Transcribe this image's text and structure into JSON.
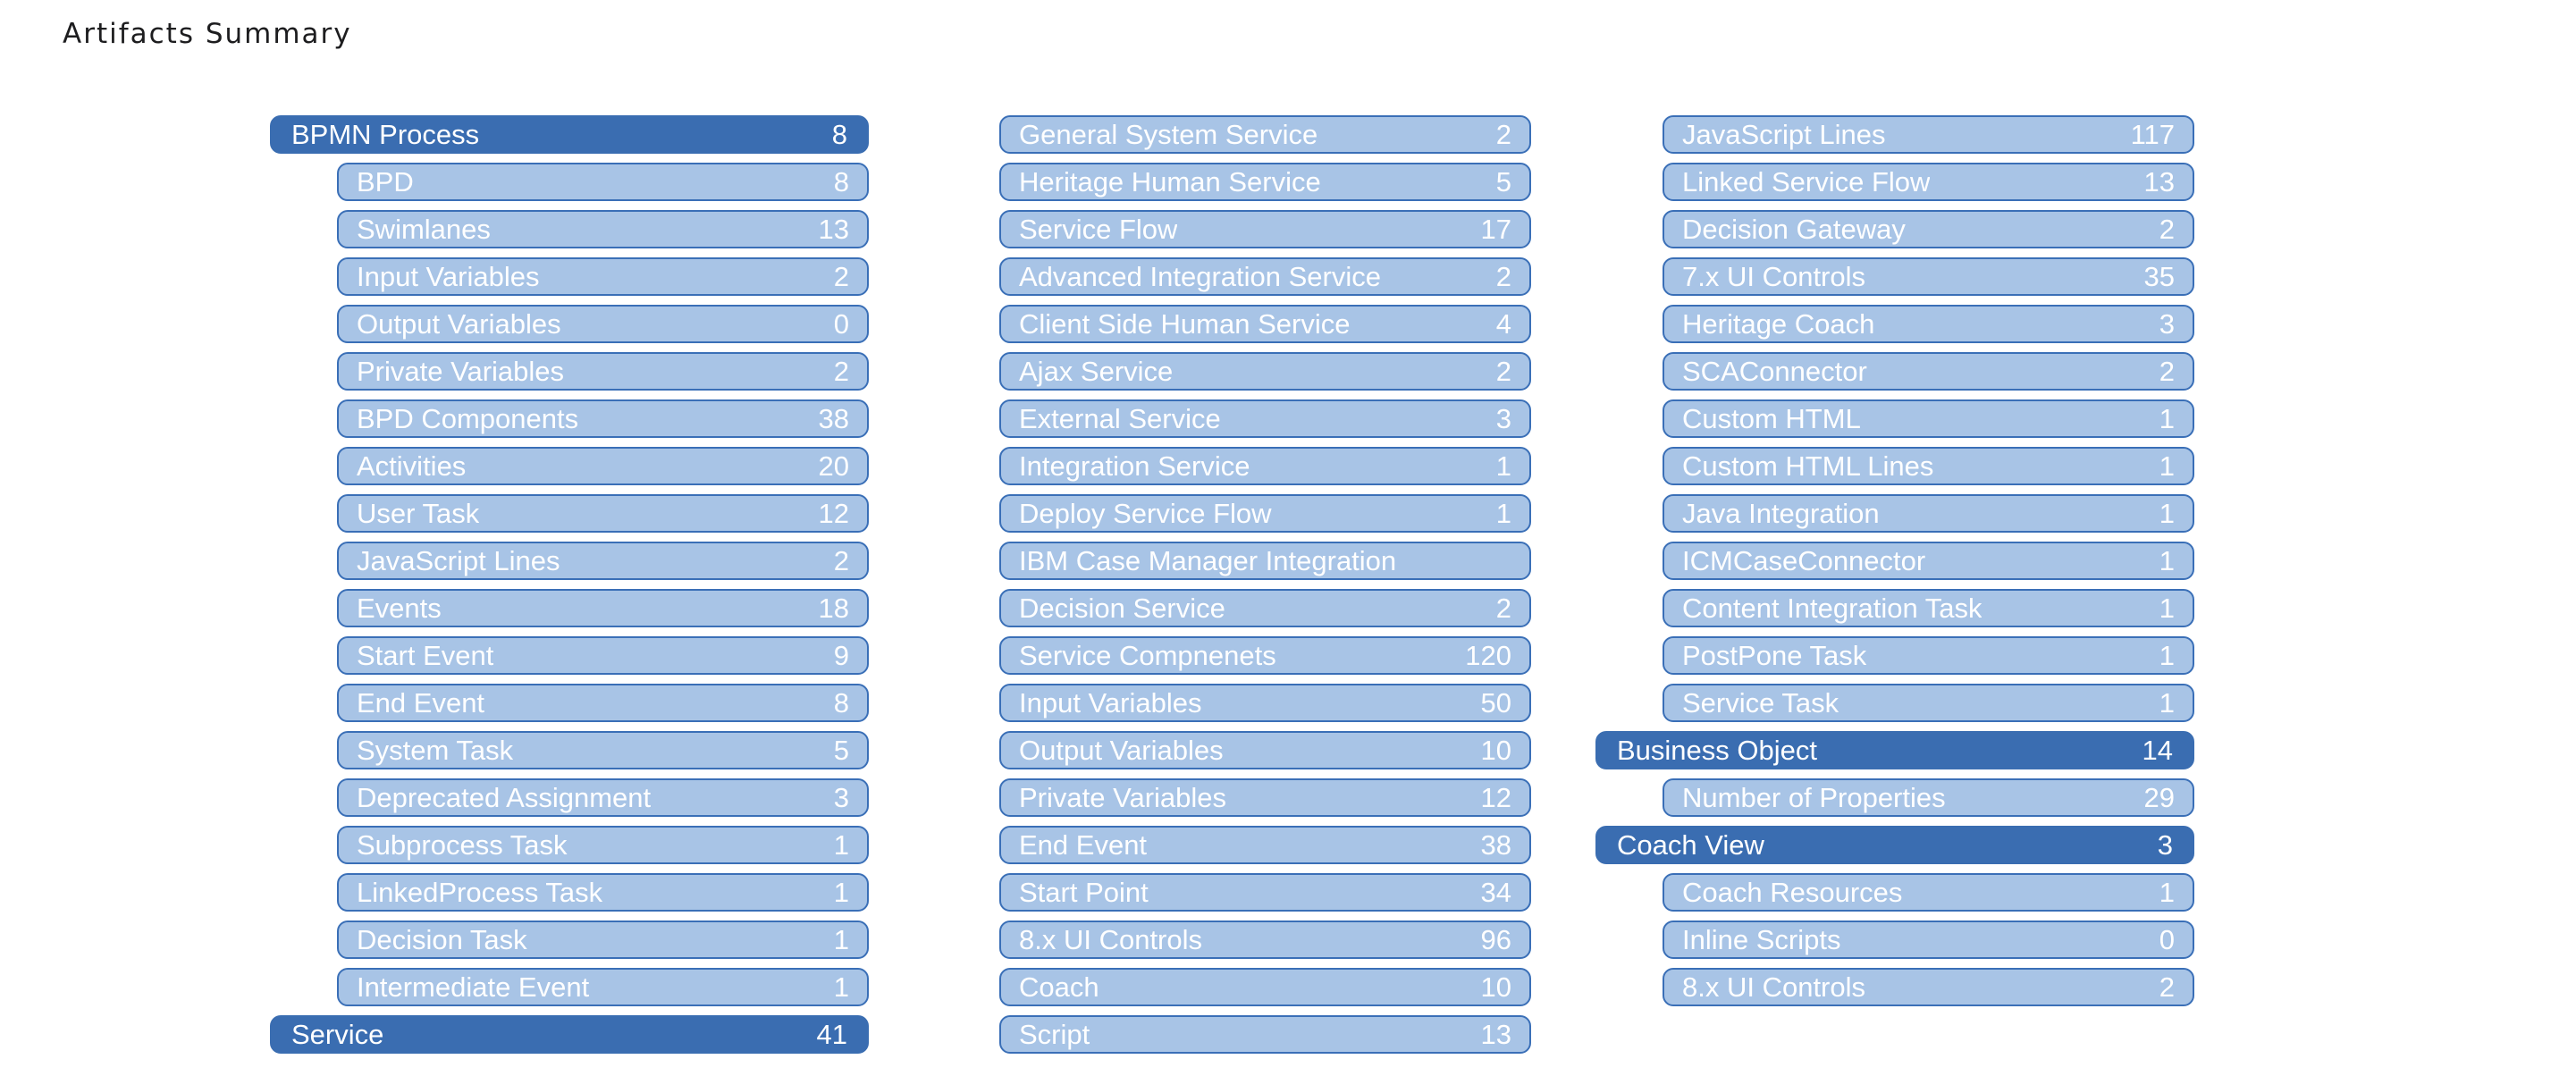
{
  "title": "Artifacts Summary",
  "columns": [
    [
      {
        "label": "BPMN Process",
        "count": "8",
        "group": true
      },
      {
        "label": "BPD",
        "count": "8"
      },
      {
        "label": "Swimlanes",
        "count": "13"
      },
      {
        "label": "Input Variables",
        "count": "2"
      },
      {
        "label": "Output Variables",
        "count": "0"
      },
      {
        "label": "Private Variables",
        "count": "2"
      },
      {
        "label": "BPD Components",
        "count": "38"
      },
      {
        "label": "Activities",
        "count": "20"
      },
      {
        "label": "User Task",
        "count": "12"
      },
      {
        "label": "JavaScript Lines",
        "count": "2"
      },
      {
        "label": "Events",
        "count": "18"
      },
      {
        "label": "Start Event",
        "count": "9"
      },
      {
        "label": "End Event",
        "count": "8"
      },
      {
        "label": "System Task",
        "count": "5"
      },
      {
        "label": "Deprecated Assignment",
        "count": "3"
      },
      {
        "label": "Subprocess Task",
        "count": "1"
      },
      {
        "label": "LinkedProcess Task",
        "count": "1"
      },
      {
        "label": "Decision Task",
        "count": "1"
      },
      {
        "label": "Intermediate Event",
        "count": "1"
      },
      {
        "label": "Service",
        "count": "41",
        "group": true
      }
    ],
    [
      {
        "label": "General System Service",
        "count": "2"
      },
      {
        "label": "Heritage Human Service",
        "count": "5"
      },
      {
        "label": "Service Flow",
        "count": "17"
      },
      {
        "label": "Advanced Integration Service",
        "count": "2"
      },
      {
        "label": "Client Side Human Service",
        "count": "4"
      },
      {
        "label": "Ajax Service",
        "count": "2"
      },
      {
        "label": "External Service",
        "count": "3"
      },
      {
        "label": "Integration Service",
        "count": "1"
      },
      {
        "label": "Deploy Service Flow",
        "count": "1"
      },
      {
        "label": "IBM Case Manager Integration",
        "count": ""
      },
      {
        "label": "Decision Service",
        "count": "2"
      },
      {
        "label": "Service Compnenets",
        "count": "120"
      },
      {
        "label": "Input Variables",
        "count": "50"
      },
      {
        "label": "Output Variables",
        "count": "10"
      },
      {
        "label": "Private Variables",
        "count": "12"
      },
      {
        "label": "End Event",
        "count": "38"
      },
      {
        "label": "Start Point",
        "count": "34"
      },
      {
        "label": "8.x UI Controls",
        "count": "96"
      },
      {
        "label": "Coach",
        "count": "10"
      },
      {
        "label": "Script",
        "count": "13"
      }
    ],
    [
      {
        "label": "JavaScript Lines",
        "count": "117"
      },
      {
        "label": "Linked Service Flow",
        "count": "13"
      },
      {
        "label": "Decision Gateway",
        "count": "2"
      },
      {
        "label": "7.x UI Controls",
        "count": "35"
      },
      {
        "label": "Heritage Coach",
        "count": "3"
      },
      {
        "label": "SCAConnector",
        "count": "2"
      },
      {
        "label": "Custom HTML",
        "count": "1"
      },
      {
        "label": "Custom HTML Lines",
        "count": "1"
      },
      {
        "label": "Java Integration",
        "count": "1"
      },
      {
        "label": "ICMCaseConnector",
        "count": "1"
      },
      {
        "label": "Content Integration Task",
        "count": "1"
      },
      {
        "label": "PostPone Task",
        "count": "1"
      },
      {
        "label": "Service Task",
        "count": "1"
      },
      {
        "label": "Business Object",
        "count": "14",
        "group": true
      },
      {
        "label": "Number of Properties",
        "count": "29"
      },
      {
        "label": "Coach View",
        "count": "3",
        "group": true
      },
      {
        "label": "Coach Resources",
        "count": "1"
      },
      {
        "label": "Inline Scripts",
        "count": "0"
      },
      {
        "label": "8.x UI Controls",
        "count": "2"
      }
    ]
  ]
}
